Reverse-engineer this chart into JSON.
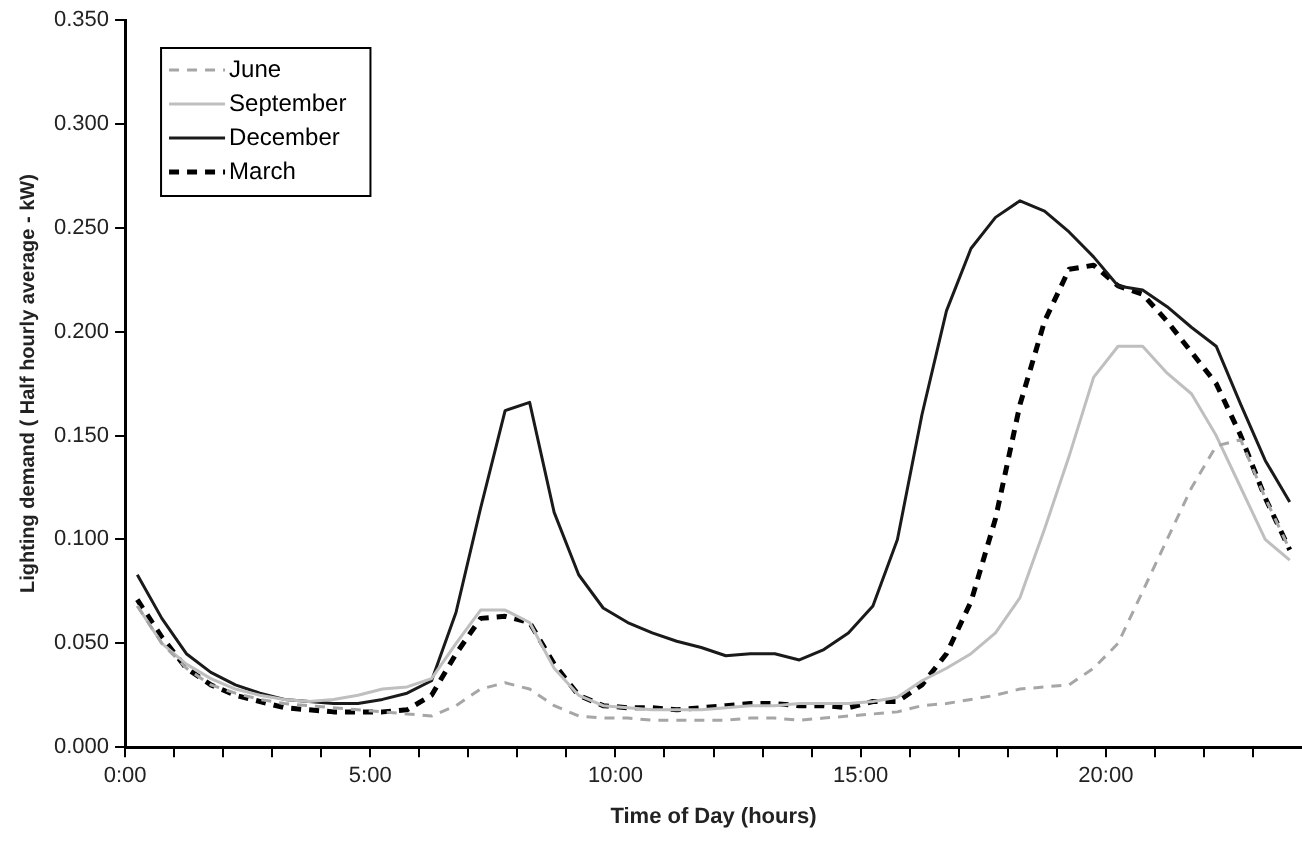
{
  "chart_data": {
    "type": "line",
    "xlabel": "Time of Day (hours)",
    "ylabel": "Lighting demand ( Half hourly average - kW)",
    "x": [
      0.25,
      0.75,
      1.25,
      1.75,
      2.25,
      2.75,
      3.25,
      3.75,
      4.25,
      4.75,
      5.25,
      5.75,
      6.25,
      6.75,
      7.25,
      7.75,
      8.25,
      8.75,
      9.25,
      9.75,
      10.25,
      10.75,
      11.25,
      11.75,
      12.25,
      12.75,
      13.25,
      13.75,
      14.25,
      14.75,
      15.25,
      15.75,
      16.25,
      16.75,
      17.25,
      17.75,
      18.25,
      18.75,
      19.25,
      19.75,
      20.25,
      20.75,
      21.25,
      21.75,
      22.25,
      22.75,
      23.25,
      23.75
    ],
    "series": [
      {
        "name": "June",
        "color": "#a6a6a6",
        "line_style": "dashed",
        "values": [
          0.068,
          0.05,
          0.038,
          0.03,
          0.026,
          0.023,
          0.021,
          0.02,
          0.019,
          0.018,
          0.017,
          0.016,
          0.015,
          0.02,
          0.028,
          0.031,
          0.028,
          0.02,
          0.015,
          0.014,
          0.014,
          0.013,
          0.013,
          0.013,
          0.013,
          0.014,
          0.014,
          0.013,
          0.014,
          0.015,
          0.016,
          0.017,
          0.02,
          0.021,
          0.023,
          0.025,
          0.028,
          0.029,
          0.03,
          0.038,
          0.05,
          0.075,
          0.1,
          0.125,
          0.145,
          0.148,
          0.12,
          0.095
        ]
      },
      {
        "name": "September",
        "color": "#bfbfbf",
        "line_style": "solid",
        "values": [
          0.068,
          0.05,
          0.04,
          0.033,
          0.028,
          0.025,
          0.023,
          0.022,
          0.023,
          0.025,
          0.028,
          0.029,
          0.033,
          0.05,
          0.066,
          0.066,
          0.06,
          0.038,
          0.025,
          0.02,
          0.019,
          0.018,
          0.018,
          0.018,
          0.019,
          0.02,
          0.02,
          0.021,
          0.021,
          0.021,
          0.022,
          0.024,
          0.032,
          0.038,
          0.045,
          0.055,
          0.072,
          0.105,
          0.14,
          0.178,
          0.193,
          0.193,
          0.18,
          0.17,
          0.15,
          0.125,
          0.1,
          0.09
        ]
      },
      {
        "name": "December",
        "color": "#1a1a1a",
        "line_style": "solid",
        "values": [
          0.083,
          0.062,
          0.045,
          0.036,
          0.03,
          0.026,
          0.023,
          0.022,
          0.021,
          0.021,
          0.023,
          0.026,
          0.032,
          0.065,
          0.115,
          0.162,
          0.166,
          0.113,
          0.083,
          0.067,
          0.06,
          0.055,
          0.051,
          0.048,
          0.044,
          0.045,
          0.045,
          0.042,
          0.047,
          0.055,
          0.068,
          0.1,
          0.16,
          0.21,
          0.24,
          0.255,
          0.263,
          0.258,
          0.248,
          0.236,
          0.222,
          0.22,
          0.212,
          0.202,
          0.193,
          0.165,
          0.138,
          0.118
        ]
      },
      {
        "name": "March",
        "color": "#000000",
        "line_style": "dashed",
        "values": [
          0.071,
          0.053,
          0.038,
          0.03,
          0.025,
          0.022,
          0.019,
          0.018,
          0.017,
          0.017,
          0.017,
          0.018,
          0.025,
          0.045,
          0.062,
          0.063,
          0.06,
          0.04,
          0.025,
          0.02,
          0.019,
          0.019,
          0.018,
          0.019,
          0.02,
          0.021,
          0.021,
          0.02,
          0.02,
          0.019,
          0.022,
          0.022,
          0.03,
          0.045,
          0.07,
          0.11,
          0.165,
          0.205,
          0.23,
          0.232,
          0.222,
          0.218,
          0.205,
          0.19,
          0.175,
          0.15,
          0.12,
          0.095
        ]
      }
    ],
    "xlim": [
      0,
      24
    ],
    "xticks": [
      {
        "value": 0,
        "label": "0:00"
      },
      {
        "value": 1,
        "label": null
      },
      {
        "value": 2,
        "label": null
      },
      {
        "value": 3,
        "label": null
      },
      {
        "value": 4,
        "label": null
      },
      {
        "value": 5,
        "label": "5:00"
      },
      {
        "value": 6,
        "label": null
      },
      {
        "value": 7,
        "label": null
      },
      {
        "value": 8,
        "label": null
      },
      {
        "value": 9,
        "label": null
      },
      {
        "value": 10,
        "label": "10:00"
      },
      {
        "value": 11,
        "label": null
      },
      {
        "value": 12,
        "label": null
      },
      {
        "value": 13,
        "label": null
      },
      {
        "value": 14,
        "label": null
      },
      {
        "value": 15,
        "label": "15:00"
      },
      {
        "value": 16,
        "label": null
      },
      {
        "value": 17,
        "label": null
      },
      {
        "value": 18,
        "label": null
      },
      {
        "value": 19,
        "label": null
      },
      {
        "value": 20,
        "label": "20:00"
      },
      {
        "value": 21,
        "label": null
      },
      {
        "value": 22,
        "label": null
      },
      {
        "value": 23,
        "label": null
      }
    ],
    "ylim": [
      0,
      0.35
    ],
    "yticks": [
      {
        "value": 0,
        "label": "0.000"
      },
      {
        "value": 0.05,
        "label": "0.050"
      },
      {
        "value": 0.1,
        "label": "0.100"
      },
      {
        "value": 0.15,
        "label": "0.150"
      },
      {
        "value": 0.2,
        "label": "0.200"
      },
      {
        "value": 0.25,
        "label": "0.250"
      },
      {
        "value": 0.3,
        "label": "0.300"
      },
      {
        "value": 0.35,
        "label": "0.350"
      }
    ],
    "legend": "top left",
    "marker": "none"
  }
}
